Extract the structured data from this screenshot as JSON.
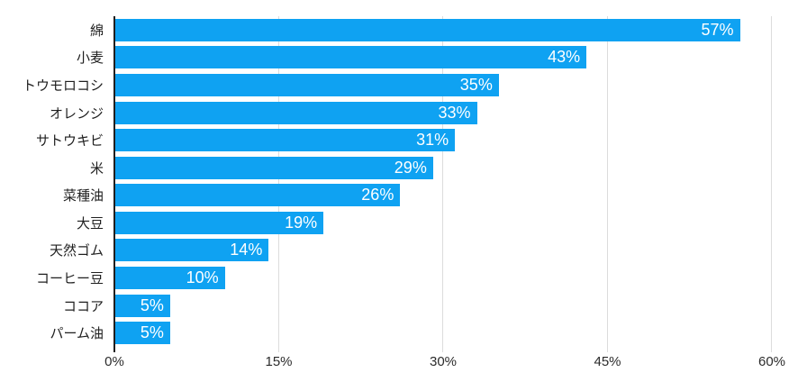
{
  "chart_data": {
    "type": "bar",
    "orientation": "horizontal",
    "title": "",
    "xlabel": "",
    "ylabel": "",
    "categories": [
      "綿",
      "小麦",
      "トウモロコシ",
      "オレンジ",
      "サトウキビ",
      "米",
      "菜種油",
      "大豆",
      "天然ゴム",
      "コーヒー豆",
      "ココア",
      "パーム油"
    ],
    "values": [
      57,
      43,
      35,
      33,
      31,
      29,
      26,
      19,
      14,
      10,
      5,
      5
    ],
    "value_labels": [
      "57%",
      "43%",
      "35%",
      "33%",
      "31%",
      "29%",
      "26%",
      "19%",
      "14%",
      "10%",
      "5%",
      "5%"
    ],
    "x_ticks": [
      {
        "value": 0,
        "label": "0%"
      },
      {
        "value": 15,
        "label": "15%"
      },
      {
        "value": 30,
        "label": "30%"
      },
      {
        "value": 45,
        "label": "45%"
      },
      {
        "value": 60,
        "label": "60%"
      }
    ],
    "xlim": [
      0,
      60
    ],
    "grid": true,
    "gridlines_at": [
      15,
      30,
      45,
      60
    ],
    "legend": false
  },
  "colors": {
    "bar": "#0fa2f2",
    "bar_value_text": "#ffffff",
    "gridline": "#dcdcdc",
    "y_axis_line": "#1f1f1f",
    "category_text": "#1f1f1f",
    "tick_text": "#2b2b2b",
    "background": "#ffffff"
  }
}
